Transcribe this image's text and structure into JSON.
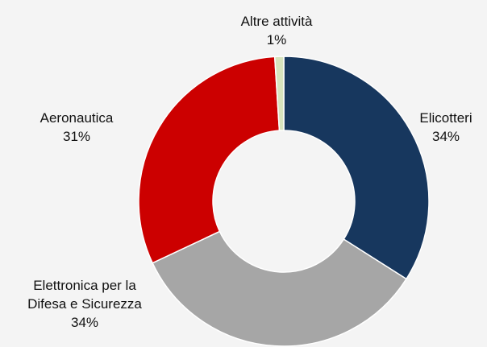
{
  "chart_data": {
    "type": "pie",
    "categories": [
      "Elicotteri",
      "Elettronica per la Difesa e Sicurezza",
      "Aeronautica",
      "Altre attività"
    ],
    "values": [
      34,
      34,
      31,
      1
    ],
    "value_labels": [
      "34%",
      "34%",
      "31%",
      "1%"
    ],
    "colors": [
      "#17375e",
      "#a6a6a6",
      "#cc0000",
      "#d7e4bd"
    ]
  }
}
